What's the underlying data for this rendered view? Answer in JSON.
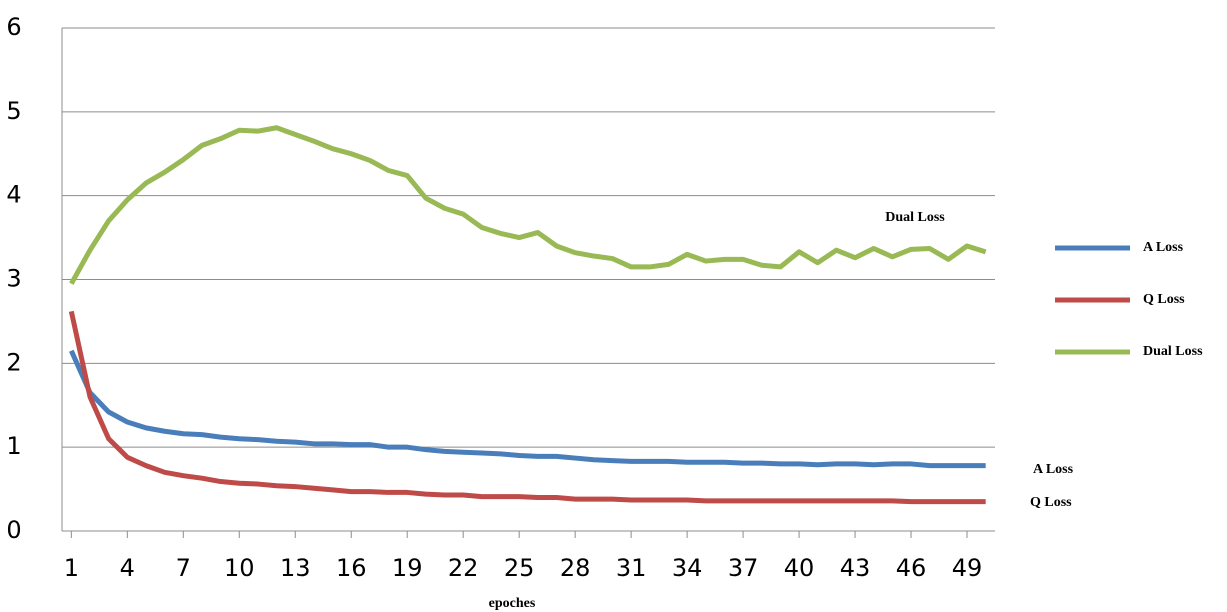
{
  "chart_data": {
    "type": "line",
    "x_label": "epoches",
    "x": [
      1,
      2,
      3,
      4,
      5,
      6,
      7,
      8,
      9,
      10,
      11,
      12,
      13,
      14,
      15,
      16,
      17,
      18,
      19,
      20,
      21,
      22,
      23,
      24,
      25,
      26,
      27,
      28,
      29,
      30,
      31,
      32,
      33,
      34,
      35,
      36,
      37,
      38,
      39,
      40,
      41,
      42,
      43,
      44,
      45,
      46,
      47,
      48,
      49,
      50
    ],
    "xlim": [
      0.5,
      50.5
    ],
    "xticks": [
      1,
      4,
      7,
      10,
      13,
      16,
      19,
      22,
      25,
      28,
      31,
      34,
      37,
      40,
      43,
      46,
      49
    ],
    "ylim": [
      0,
      6
    ],
    "yticks": [
      0,
      1,
      2,
      3,
      4,
      5,
      6
    ],
    "grid": true,
    "legend": "right",
    "series": [
      {
        "name": "A Loss",
        "color": "#4a7ebb",
        "values": [
          2.15,
          1.65,
          1.42,
          1.3,
          1.23,
          1.19,
          1.16,
          1.15,
          1.12,
          1.1,
          1.09,
          1.07,
          1.06,
          1.04,
          1.04,
          1.03,
          1.03,
          1.0,
          1.0,
          0.97,
          0.95,
          0.94,
          0.93,
          0.92,
          0.9,
          0.89,
          0.89,
          0.87,
          0.85,
          0.84,
          0.83,
          0.83,
          0.83,
          0.82,
          0.82,
          0.82,
          0.81,
          0.81,
          0.8,
          0.8,
          0.79,
          0.8,
          0.8,
          0.79,
          0.8,
          0.8,
          0.78,
          0.78,
          0.78,
          0.78
        ]
      },
      {
        "name": "Q Loss",
        "color": "#be4b48",
        "values": [
          2.62,
          1.6,
          1.1,
          0.88,
          0.78,
          0.7,
          0.66,
          0.63,
          0.59,
          0.57,
          0.56,
          0.54,
          0.53,
          0.51,
          0.49,
          0.47,
          0.47,
          0.46,
          0.46,
          0.44,
          0.43,
          0.43,
          0.41,
          0.41,
          0.41,
          0.4,
          0.4,
          0.38,
          0.38,
          0.38,
          0.37,
          0.37,
          0.37,
          0.37,
          0.36,
          0.36,
          0.36,
          0.36,
          0.36,
          0.36,
          0.36,
          0.36,
          0.36,
          0.36,
          0.36,
          0.35,
          0.35,
          0.35,
          0.35,
          0.35
        ]
      },
      {
        "name": "Dual Loss",
        "color": "#98b954",
        "values": [
          2.95,
          3.35,
          3.7,
          3.95,
          4.15,
          4.28,
          4.43,
          4.6,
          4.68,
          4.78,
          4.77,
          4.81,
          4.73,
          4.65,
          4.56,
          4.5,
          4.42,
          4.3,
          4.24,
          3.97,
          3.85,
          3.78,
          3.62,
          3.55,
          3.5,
          3.56,
          3.4,
          3.32,
          3.28,
          3.25,
          3.15,
          3.15,
          3.18,
          3.3,
          3.22,
          3.24,
          3.24,
          3.17,
          3.15,
          3.33,
          3.2,
          3.35,
          3.26,
          3.37,
          3.27,
          3.36,
          3.37,
          3.24,
          3.4,
          3.33
        ]
      }
    ],
    "annotations": [
      "Dual Loss",
      "A Loss",
      "Q Loss"
    ]
  }
}
